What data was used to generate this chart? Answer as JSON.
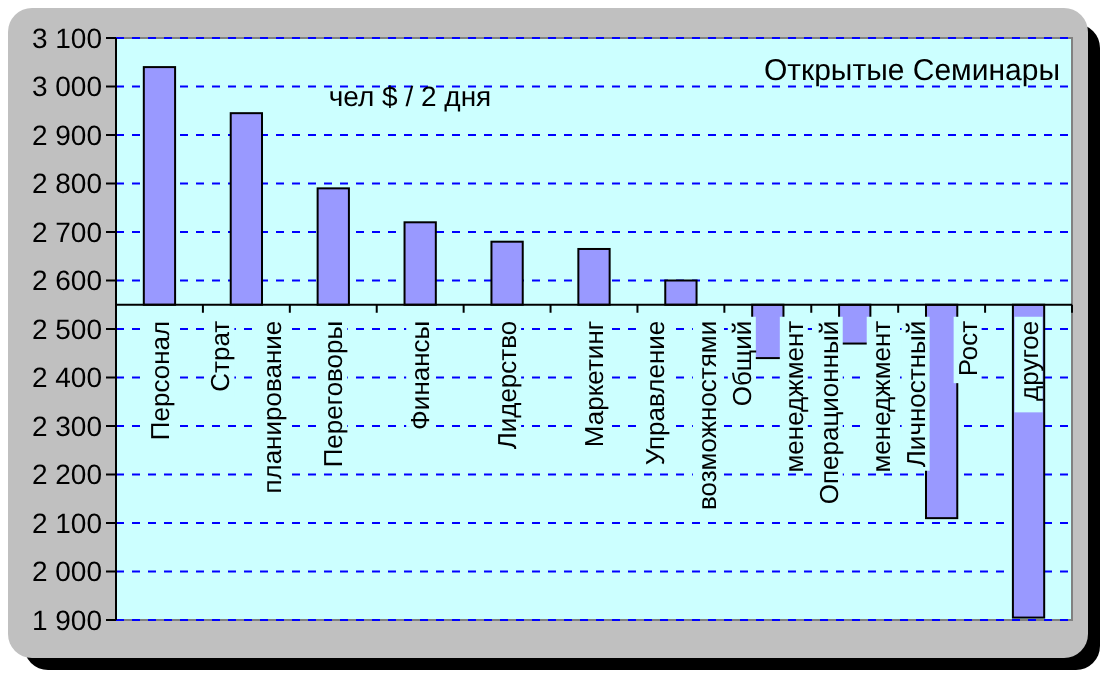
{
  "chart_data": {
    "type": "bar",
    "title": "Открытые Семинары",
    "subtitle": "чел $ / 2 дня",
    "categories": [
      "Персонал",
      "Страт планирование",
      "Переговоры",
      "Финансы",
      "Лидерство",
      "Маркетинг",
      "Управление возможностями",
      "Общий менеджмент",
      "Операционный менеджмент",
      "Личностный Рост",
      "другое"
    ],
    "base": [
      2550,
      2550,
      2550,
      2550,
      2550,
      2550,
      2550,
      2550,
      2550,
      2550,
      2550
    ],
    "values": [
      490,
      395,
      240,
      170,
      130,
      115,
      50,
      -110,
      -80,
      -440,
      -645
    ],
    "color": "#9999ff",
    "ylim": [
      1900,
      3100
    ],
    "yticks": [
      {
        "value": 1900,
        "label": "1 900"
      },
      {
        "value": 2000,
        "label": "2 000"
      },
      {
        "value": 2100,
        "label": "2 100"
      },
      {
        "value": 2200,
        "label": "2 200"
      },
      {
        "value": 2300,
        "label": "2 300"
      },
      {
        "value": 2400,
        "label": "2 400"
      },
      {
        "value": 2500,
        "label": "2 500"
      },
      {
        "value": 2600,
        "label": "2 600"
      },
      {
        "value": 2700,
        "label": "2 700"
      },
      {
        "value": 2800,
        "label": "2 800"
      },
      {
        "value": 2900,
        "label": "2 900"
      },
      {
        "value": 3000,
        "label": "3 000"
      },
      {
        "value": 3100,
        "label": "3 100"
      }
    ],
    "grid": "y"
  }
}
